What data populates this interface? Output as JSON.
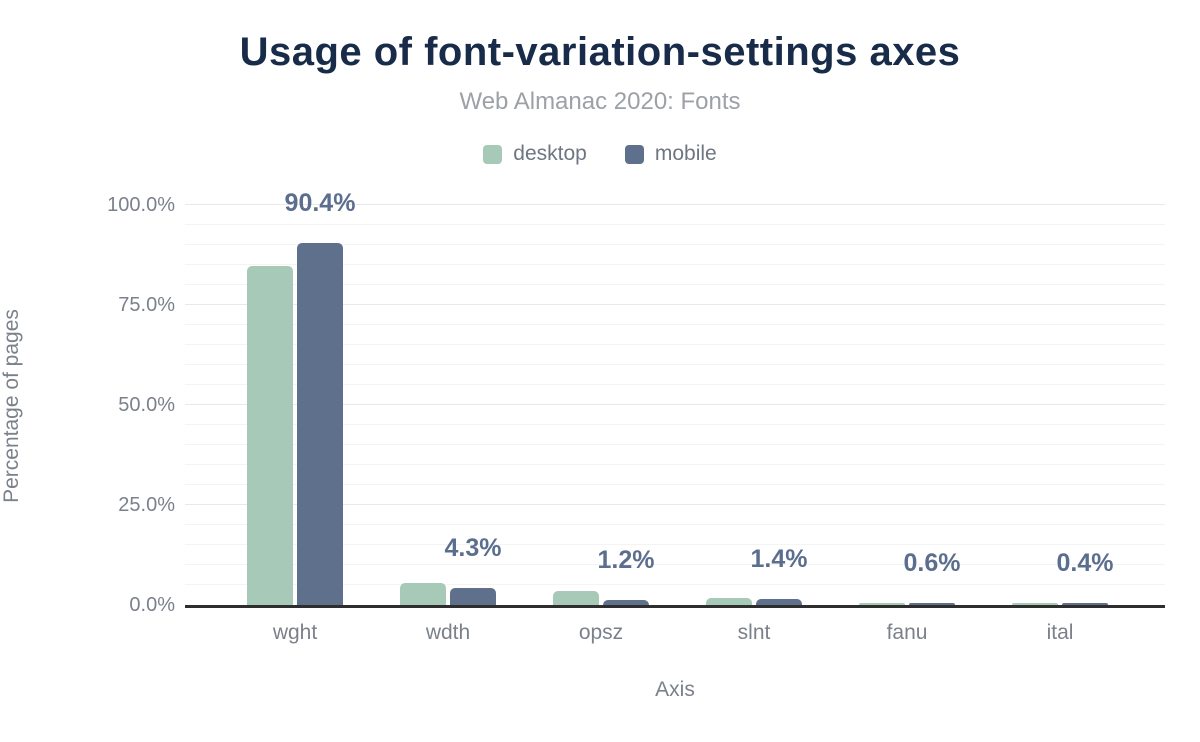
{
  "header": {
    "title": "Usage of font-variation-settings axes",
    "subtitle": "Web Almanac 2020: Fonts"
  },
  "chart_data": {
    "type": "bar",
    "title": "Usage of font-variation-settings axes",
    "subtitle": "Web Almanac 2020: Fonts",
    "categories": [
      "wght",
      "wdth",
      "opsz",
      "slnt",
      "fanu",
      "ital"
    ],
    "series": [
      {
        "name": "desktop",
        "color": "#a7c9b7",
        "values": [
          84.7,
          5.5,
          3.4,
          1.7,
          0.5,
          0.5
        ]
      },
      {
        "name": "mobile",
        "color": "#5f708c",
        "values": [
          90.4,
          4.3,
          1.2,
          1.4,
          0.6,
          0.4
        ]
      }
    ],
    "data_labels": [
      "90.4%",
      "4.3%",
      "1.2%",
      "1.4%",
      "0.6%",
      "0.4%"
    ],
    "data_label_series": "mobile",
    "data_label_color": "#5b6e8e",
    "xlabel": "Axis",
    "ylabel": "Percentage of pages",
    "ylim": [
      0,
      100
    ],
    "yticks": [
      {
        "value": 0,
        "label": "0.0%"
      },
      {
        "value": 25,
        "label": "25.0%"
      },
      {
        "value": 50,
        "label": "50.0%"
      },
      {
        "value": 75,
        "label": "75.0%"
      },
      {
        "value": 100,
        "label": "100.0%"
      }
    ],
    "grid": "horizontal, minor every 5%, major every 25%",
    "legend_position": "top"
  }
}
